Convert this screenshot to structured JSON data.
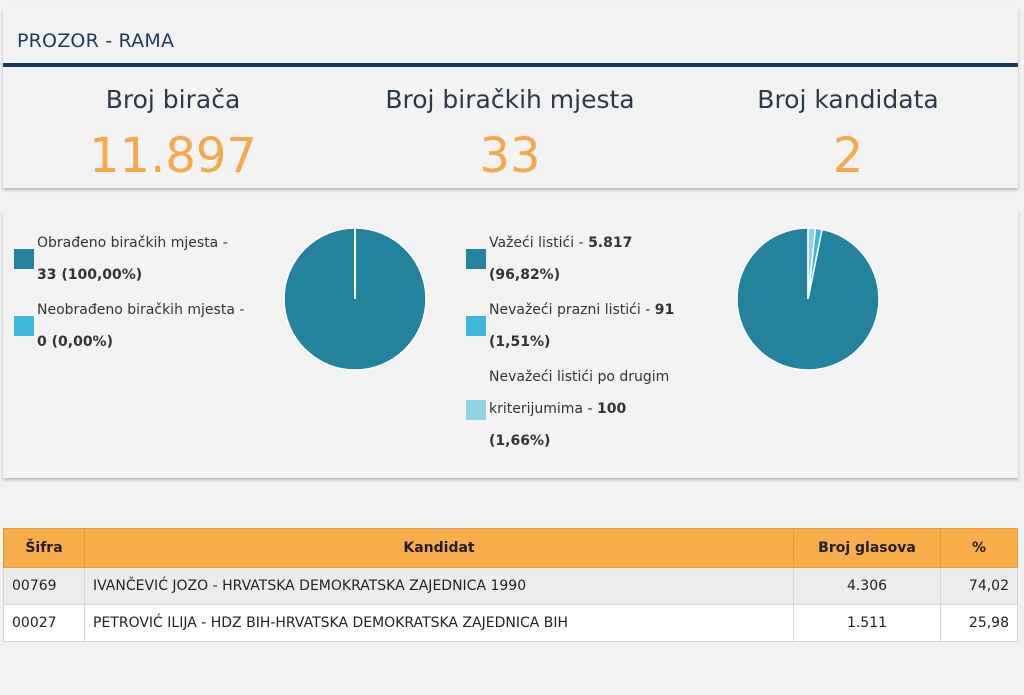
{
  "header": {
    "title": "PROZOR - RAMA"
  },
  "stats": [
    {
      "label": "Broj birača",
      "value": "11.897"
    },
    {
      "label": "Broj biračkih mjesta",
      "value": "33"
    },
    {
      "label": "Broj kandidata",
      "value": "2"
    }
  ],
  "polling_stations": {
    "items": [
      {
        "line1": "Obrađeno biračkih mjesta -",
        "line2": "33 (100,00%)",
        "color": "#23839e",
        "fraction": 1.0
      },
      {
        "line1": "Neobrađeno biračkih mjesta -",
        "line2": "0 (0,00%)",
        "color": "#41b6db",
        "fraction": 0.0
      }
    ]
  },
  "ballots": {
    "items": [
      {
        "line1": "Važeći listići - ",
        "value1": "5.817",
        "line2": "(96,82%)",
        "color": "#23839e",
        "fraction": 0.9682
      },
      {
        "line1": "Nevažeći prazni listići - ",
        "value1": "91",
        "line2": "(1,51%)",
        "color": "#41b6db",
        "fraction": 0.0151
      },
      {
        "line0": "Nevažeći listići po drugim",
        "line1": "kriterijumima - ",
        "value1": "100",
        "line2": "(1,66%)",
        "color": "#8fd3e8",
        "fraction": 0.0166
      }
    ]
  },
  "table": {
    "headers": {
      "code": "Šifra",
      "candidate": "Kandidat",
      "votes": "Broj glasova",
      "percent": "%"
    },
    "rows": [
      {
        "code": "00769",
        "candidate": "IVANČEVIĆ JOZO - HRVATSKA DEMOKRATSKA ZAJEDNICA 1990",
        "votes": "4.306",
        "percent": "74,02"
      },
      {
        "code": "00027",
        "candidate": "PETROVIĆ ILIJA - HDZ BIH-HRVATSKA DEMOKRATSKA ZAJEDNICA BIH",
        "votes": "1.511",
        "percent": "25,98"
      }
    ]
  }
}
